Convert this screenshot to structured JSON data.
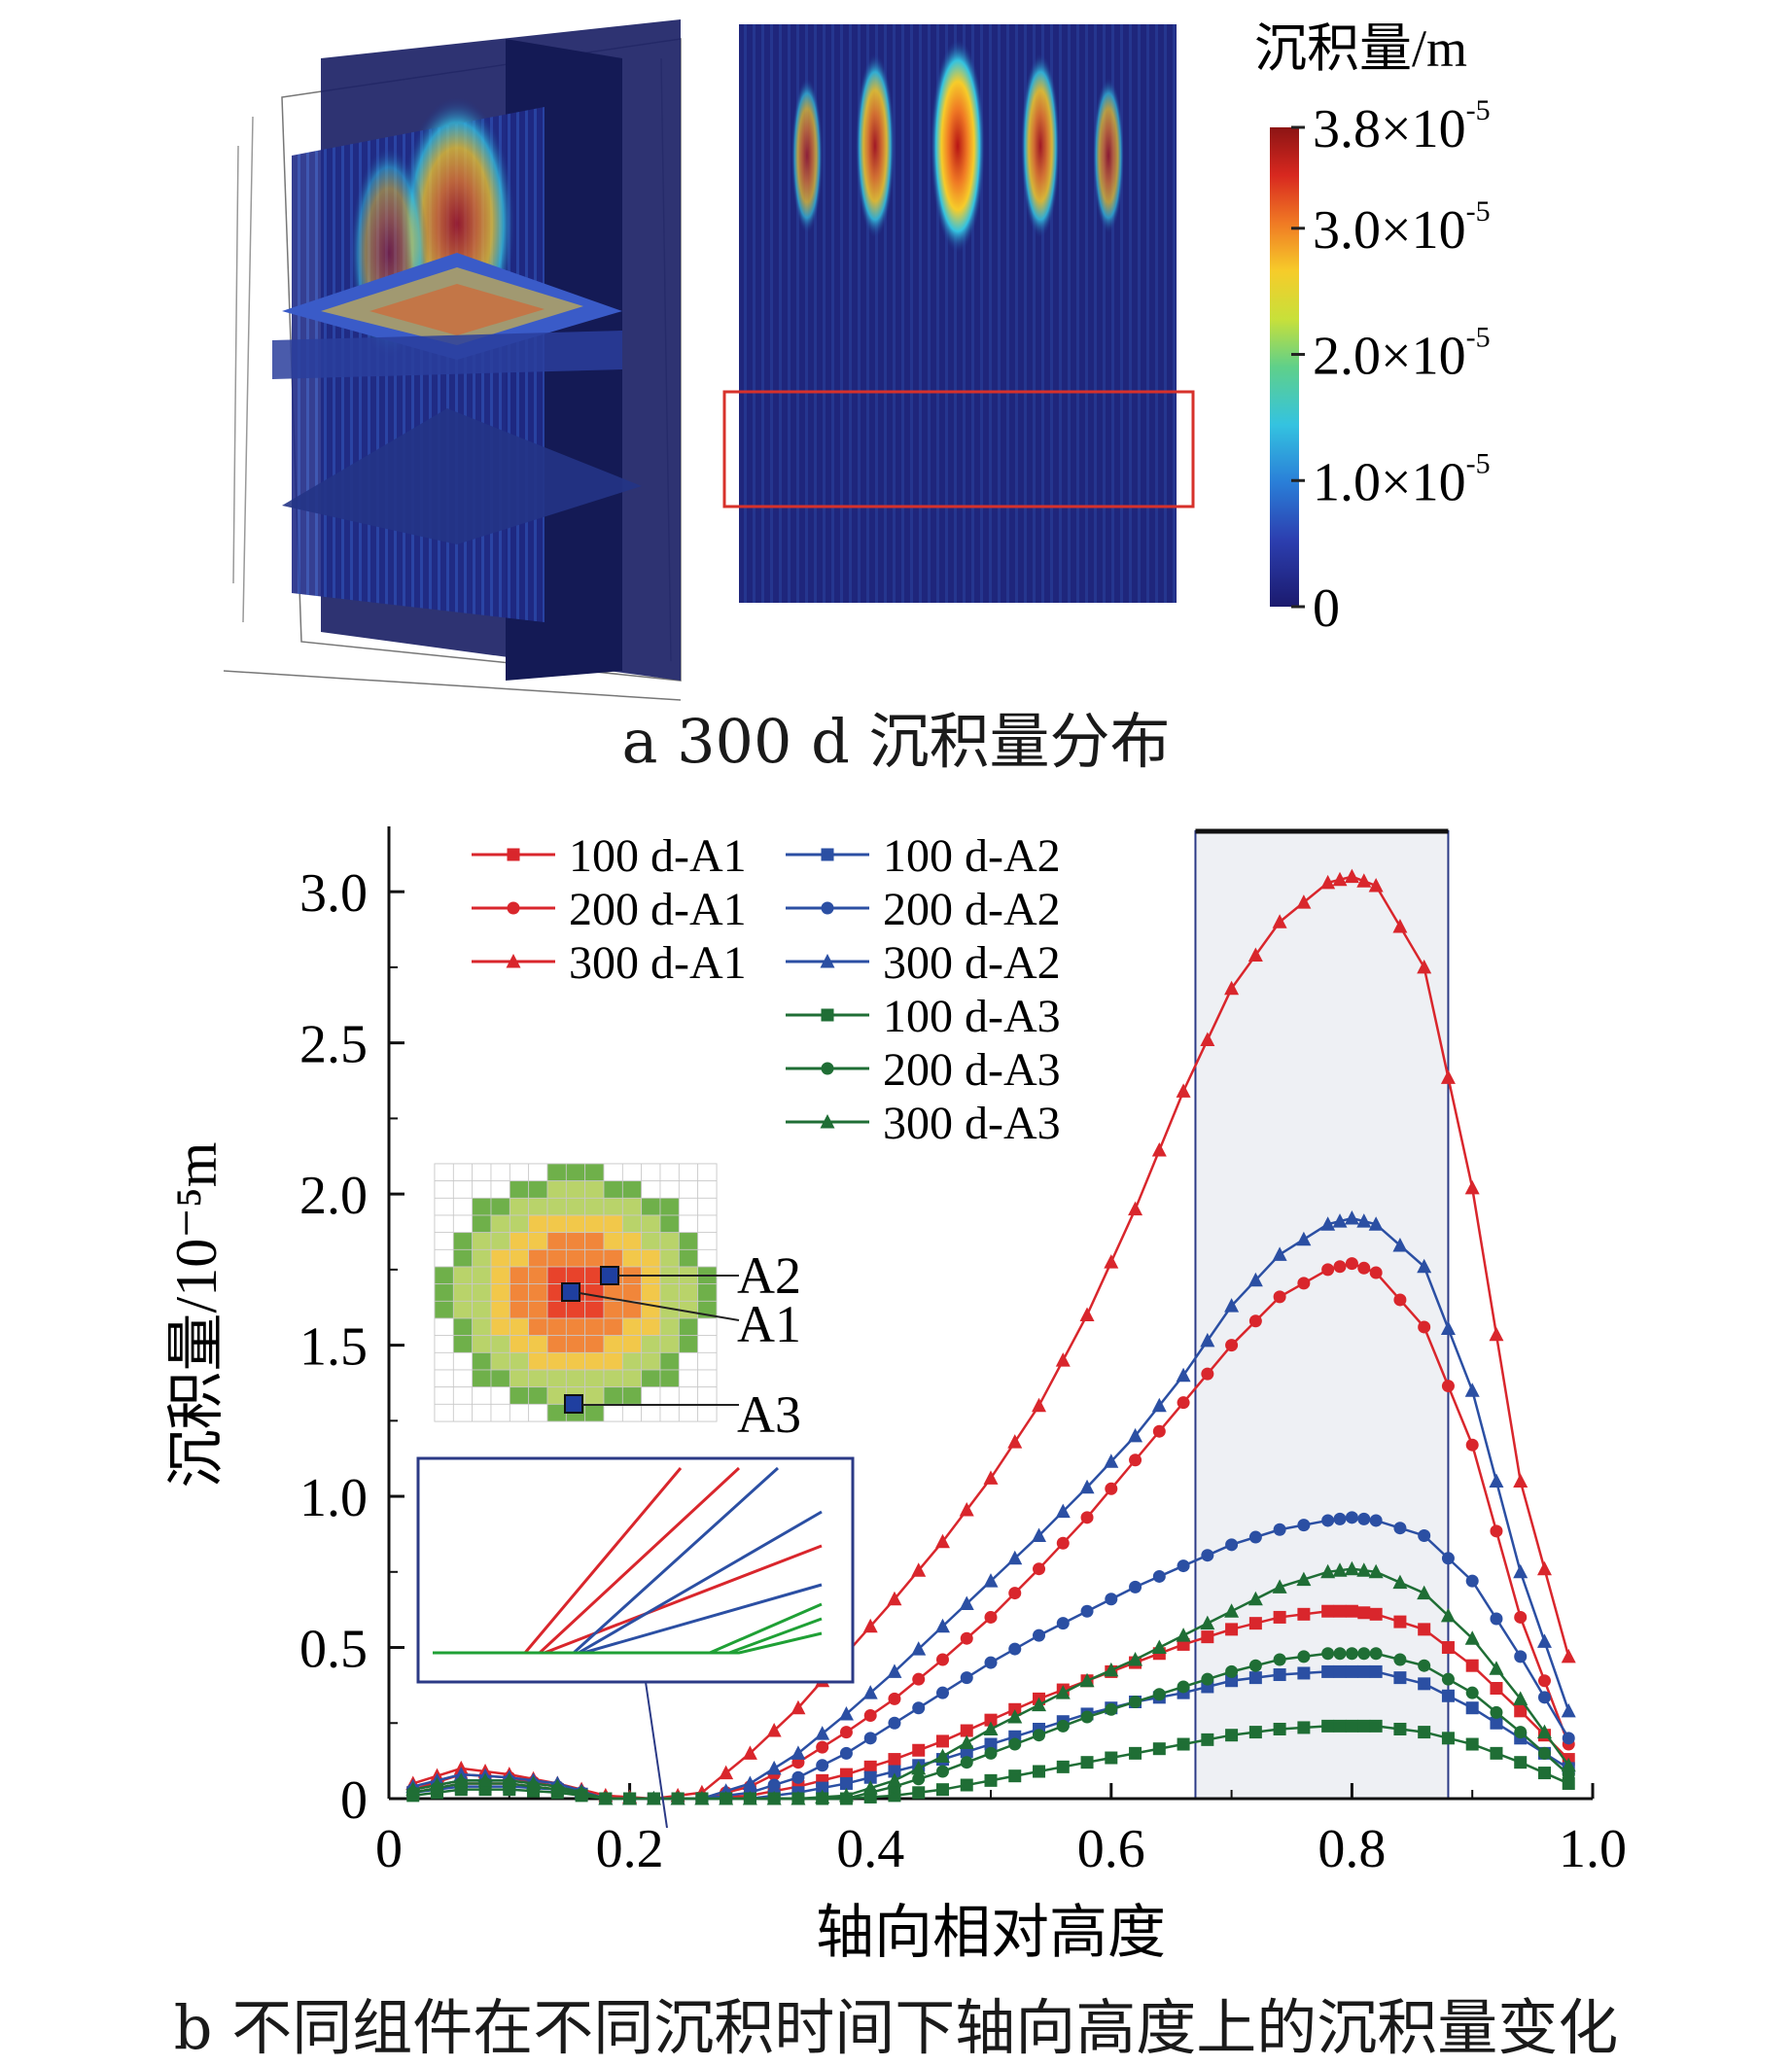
{
  "panel_a": {
    "caption": "a 300 d 沉积量分布",
    "colorbar": {
      "title": "沉积量/m",
      "ticks": [
        {
          "value": 3.8e-05,
          "mantissa": "3.8",
          "exp": "-5"
        },
        {
          "value": 3e-05,
          "mantissa": "3.0",
          "exp": "-5"
        },
        {
          "value": 2e-05,
          "mantissa": "2.0",
          "exp": "-5"
        },
        {
          "value": 1e-05,
          "mantissa": "1.0",
          "exp": "-5"
        },
        {
          "value": 0,
          "mantissa": "0",
          "exp": ""
        }
      ],
      "max": 3.8e-05,
      "colors": [
        "#1b1a6e",
        "#2c3fb0",
        "#2a7fd8",
        "#34c3e0",
        "#5fd08a",
        "#c8e03a",
        "#f6cc2a",
        "#f07a24",
        "#d8281f",
        "#8c1414"
      ]
    }
  },
  "panel_b": {
    "caption": "b 不同组件在不同沉积时间下轴向高度上的沉积量变化",
    "inset_labels": [
      "A2",
      "A1",
      "A3"
    ]
  },
  "chart_data": {
    "type": "line",
    "xlabel": "轴向相对高度",
    "ylabel": "沉积量/10⁻⁵m",
    "xlim": [
      0,
      1.0
    ],
    "ylim": [
      0,
      3.2
    ],
    "xticks": [
      0,
      0.2,
      0.4,
      0.6,
      0.8,
      1.0
    ],
    "xtick_labels": [
      "0",
      "0.2",
      "0.4",
      "0.6",
      "0.8",
      "1.0"
    ],
    "yticks": [
      0,
      0.5,
      1.0,
      1.5,
      2.0,
      2.5,
      3.0
    ],
    "ytick_labels": [
      "0",
      "0.5",
      "1.0",
      "1.5",
      "2.0",
      "2.5",
      "3.0"
    ],
    "highlight_x_range": [
      0.67,
      0.88
    ],
    "legend_position": "top-center",
    "colors": {
      "A1": "#d9262c",
      "A2": "#2b4fa3",
      "A3": "#1f6e35"
    },
    "series": [
      {
        "name": "100 d-A1",
        "group": "A1",
        "marker": "square",
        "x": [
          0.02,
          0.06,
          0.1,
          0.14,
          0.18,
          0.22,
          0.26,
          0.3,
          0.34,
          0.38,
          0.42,
          0.46,
          0.5,
          0.54,
          0.58,
          0.62,
          0.66,
          0.7,
          0.74,
          0.78,
          0.8,
          0.82,
          0.86,
          0.9,
          0.94,
          0.98
        ],
        "y": [
          0.02,
          0.05,
          0.05,
          0.03,
          0.0,
          0.0,
          0.0,
          0.01,
          0.04,
          0.08,
          0.13,
          0.19,
          0.26,
          0.33,
          0.39,
          0.45,
          0.51,
          0.56,
          0.6,
          0.62,
          0.62,
          0.61,
          0.56,
          0.44,
          0.29,
          0.13
        ]
      },
      {
        "name": "200 d-A1",
        "group": "A1",
        "marker": "circle",
        "x": [
          0.02,
          0.06,
          0.1,
          0.14,
          0.18,
          0.22,
          0.26,
          0.3,
          0.34,
          0.38,
          0.42,
          0.46,
          0.5,
          0.54,
          0.58,
          0.62,
          0.66,
          0.7,
          0.74,
          0.78,
          0.8,
          0.82,
          0.86,
          0.9,
          0.94,
          0.98
        ],
        "y": [
          0.03,
          0.08,
          0.07,
          0.04,
          0.0,
          0.0,
          0.0,
          0.04,
          0.12,
          0.22,
          0.33,
          0.46,
          0.6,
          0.76,
          0.93,
          1.12,
          1.31,
          1.5,
          1.66,
          1.75,
          1.77,
          1.74,
          1.56,
          1.17,
          0.6,
          0.18
        ]
      },
      {
        "name": "300 d-A1",
        "group": "A1",
        "marker": "triangle",
        "x": [
          0.02,
          0.06,
          0.1,
          0.14,
          0.18,
          0.22,
          0.26,
          0.3,
          0.34,
          0.38,
          0.42,
          0.46,
          0.5,
          0.54,
          0.58,
          0.62,
          0.66,
          0.7,
          0.74,
          0.78,
          0.8,
          0.82,
          0.86,
          0.9,
          0.94,
          0.98
        ],
        "y": [
          0.05,
          0.1,
          0.08,
          0.05,
          0.01,
          0.0,
          0.02,
          0.15,
          0.3,
          0.48,
          0.66,
          0.85,
          1.06,
          1.3,
          1.6,
          1.95,
          2.34,
          2.68,
          2.9,
          3.03,
          3.05,
          3.02,
          2.75,
          2.02,
          1.05,
          0.47
        ]
      },
      {
        "name": "100 d-A2",
        "group": "A2",
        "marker": "square",
        "x": [
          0.02,
          0.06,
          0.1,
          0.14,
          0.18,
          0.22,
          0.26,
          0.3,
          0.34,
          0.38,
          0.42,
          0.46,
          0.5,
          0.54,
          0.58,
          0.62,
          0.66,
          0.7,
          0.74,
          0.78,
          0.8,
          0.82,
          0.86,
          0.9,
          0.94,
          0.98
        ],
        "y": [
          0.02,
          0.04,
          0.04,
          0.03,
          0.0,
          0.0,
          0.0,
          0.0,
          0.02,
          0.05,
          0.09,
          0.13,
          0.18,
          0.23,
          0.28,
          0.32,
          0.35,
          0.39,
          0.41,
          0.42,
          0.42,
          0.42,
          0.38,
          0.3,
          0.2,
          0.1
        ]
      },
      {
        "name": "200 d-A2",
        "group": "A2",
        "marker": "circle",
        "x": [
          0.02,
          0.06,
          0.1,
          0.14,
          0.18,
          0.22,
          0.26,
          0.3,
          0.34,
          0.38,
          0.42,
          0.46,
          0.5,
          0.54,
          0.58,
          0.62,
          0.66,
          0.7,
          0.74,
          0.78,
          0.8,
          0.82,
          0.86,
          0.9,
          0.94,
          0.98
        ],
        "y": [
          0.03,
          0.06,
          0.06,
          0.04,
          0.0,
          0.0,
          0.0,
          0.02,
          0.07,
          0.15,
          0.25,
          0.35,
          0.45,
          0.54,
          0.62,
          0.7,
          0.77,
          0.84,
          0.89,
          0.92,
          0.93,
          0.92,
          0.87,
          0.72,
          0.47,
          0.2
        ]
      },
      {
        "name": "300 d-A2",
        "group": "A2",
        "marker": "triangle",
        "x": [
          0.02,
          0.06,
          0.1,
          0.14,
          0.18,
          0.22,
          0.26,
          0.3,
          0.34,
          0.38,
          0.42,
          0.46,
          0.5,
          0.54,
          0.58,
          0.62,
          0.66,
          0.7,
          0.74,
          0.78,
          0.8,
          0.82,
          0.86,
          0.9,
          0.94,
          0.98
        ],
        "y": [
          0.04,
          0.08,
          0.07,
          0.05,
          0.0,
          0.0,
          0.0,
          0.05,
          0.15,
          0.28,
          0.42,
          0.57,
          0.72,
          0.87,
          1.03,
          1.2,
          1.4,
          1.63,
          1.8,
          1.9,
          1.92,
          1.9,
          1.76,
          1.35,
          0.75,
          0.29
        ]
      },
      {
        "name": "100 d-A3",
        "group": "A3",
        "marker": "square",
        "x": [
          0.02,
          0.06,
          0.1,
          0.14,
          0.18,
          0.22,
          0.26,
          0.3,
          0.34,
          0.38,
          0.42,
          0.46,
          0.5,
          0.54,
          0.58,
          0.62,
          0.66,
          0.7,
          0.74,
          0.78,
          0.8,
          0.82,
          0.86,
          0.9,
          0.94,
          0.98
        ],
        "y": [
          0.01,
          0.03,
          0.03,
          0.02,
          0.0,
          0.0,
          0.0,
          0.0,
          0.0,
          0.0,
          0.01,
          0.03,
          0.06,
          0.09,
          0.12,
          0.15,
          0.18,
          0.21,
          0.23,
          0.24,
          0.24,
          0.24,
          0.22,
          0.18,
          0.12,
          0.05
        ]
      },
      {
        "name": "200 d-A3",
        "group": "A3",
        "marker": "circle",
        "x": [
          0.02,
          0.06,
          0.1,
          0.14,
          0.18,
          0.22,
          0.26,
          0.3,
          0.34,
          0.38,
          0.42,
          0.46,
          0.5,
          0.54,
          0.58,
          0.62,
          0.66,
          0.7,
          0.74,
          0.78,
          0.8,
          0.82,
          0.86,
          0.9,
          0.94,
          0.98
        ],
        "y": [
          0.02,
          0.05,
          0.05,
          0.03,
          0.0,
          0.0,
          0.0,
          0.0,
          0.0,
          0.0,
          0.04,
          0.09,
          0.15,
          0.21,
          0.27,
          0.32,
          0.37,
          0.42,
          0.46,
          0.48,
          0.48,
          0.48,
          0.44,
          0.35,
          0.22,
          0.08
        ]
      },
      {
        "name": "300 d-A3",
        "group": "A3",
        "marker": "triangle",
        "x": [
          0.02,
          0.06,
          0.1,
          0.14,
          0.18,
          0.22,
          0.26,
          0.3,
          0.34,
          0.38,
          0.42,
          0.46,
          0.5,
          0.54,
          0.58,
          0.62,
          0.66,
          0.7,
          0.74,
          0.78,
          0.8,
          0.82,
          0.86,
          0.9,
          0.94,
          0.98
        ],
        "y": [
          0.03,
          0.06,
          0.06,
          0.04,
          0.0,
          0.0,
          0.0,
          0.0,
          0.0,
          0.01,
          0.06,
          0.14,
          0.23,
          0.31,
          0.39,
          0.46,
          0.54,
          0.62,
          0.7,
          0.75,
          0.76,
          0.75,
          0.68,
          0.53,
          0.33,
          0.11
        ]
      }
    ]
  }
}
